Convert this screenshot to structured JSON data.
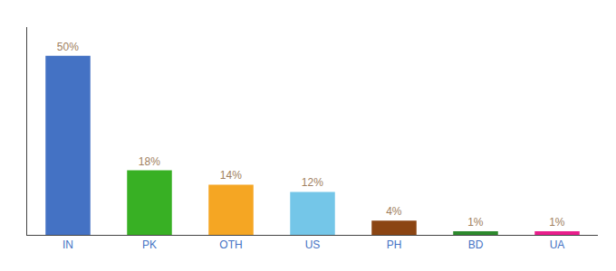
{
  "chart_data": {
    "type": "bar",
    "categories": [
      "IN",
      "PK",
      "OTH",
      "US",
      "PH",
      "BD",
      "UA"
    ],
    "values": [
      50,
      18,
      14,
      12,
      4,
      1,
      1
    ],
    "value_labels": [
      "50%",
      "18%",
      "14%",
      "12%",
      "4%",
      "1%",
      "1%"
    ],
    "colors": [
      "#4472c4",
      "#38b024",
      "#f5a623",
      "#74c6e8",
      "#8b4513",
      "#2d8a2d",
      "#e91e8c"
    ],
    "ylim": [
      0,
      58
    ],
    "grid": false,
    "data_labels": true,
    "tick_labels": "x"
  }
}
